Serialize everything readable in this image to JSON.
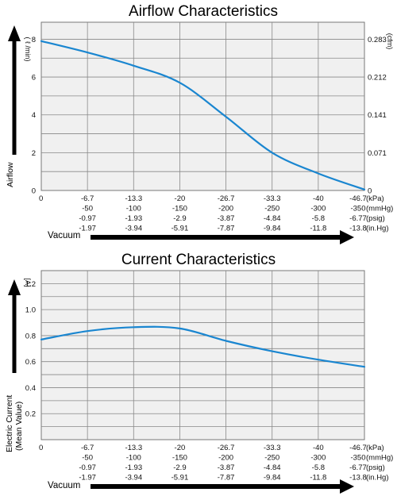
{
  "chart_data": [
    {
      "type": "line",
      "title": "Airflow Characteristics",
      "ylabel": "Airflow",
      "y_unit": "( ℓ /min)",
      "y2_unit": "(cfm)",
      "xlabel": "Vacuum",
      "ylim": [
        0,
        8.9
      ],
      "yticks": [
        0,
        2,
        4,
        6,
        8
      ],
      "y2ticks": [
        "0",
        "0.071",
        "0.141",
        "0.212",
        "0.283"
      ],
      "x_rows": [
        {
          "unit": "(kPa)",
          "labels": [
            "0",
            "-6.7",
            "-13.3",
            "-20",
            "-26.7",
            "-33.3",
            "-40",
            "-46.7"
          ]
        },
        {
          "unit": "(mmHg)",
          "labels": [
            "",
            "-50",
            "-100",
            "-150",
            "-200",
            "-250",
            "-300",
            "-350"
          ]
        },
        {
          "unit": "(psig)",
          "labels": [
            "",
            "-0.97",
            "-1.93",
            "-2.9",
            "-3.87",
            "-4.84",
            "-5.8",
            "-6.77"
          ]
        },
        {
          "unit": "(in.Hg)",
          "labels": [
            "",
            "-1.97",
            "-3.94",
            "-5.91",
            "-7.87",
            "-9.84",
            "-11.8",
            "-13.8"
          ]
        }
      ],
      "x": [
        0,
        -6.7,
        -13.3,
        -20,
        -26.7,
        -33.3,
        -40,
        -46.7
      ],
      "series": [
        {
          "values": [
            7.9,
            7.3,
            6.6,
            5.7,
            3.9,
            2.0,
            0.9,
            0.05
          ]
        }
      ]
    },
    {
      "type": "line",
      "title": "Current Characteristics",
      "ylabel": "Electric Current",
      "ylabel2": "(Mean Value)",
      "y_unit": "[A]",
      "xlabel": "Vacuum",
      "ylim": [
        0,
        1.3
      ],
      "yticks": [
        0.2,
        0.4,
        0.6,
        0.8,
        1.0,
        1.2
      ],
      "ytick_labels": [
        "0.2",
        "0.4",
        "0.6",
        "0.8",
        "1.0",
        "1.2"
      ],
      "x_rows": [
        {
          "unit": "(kPa)",
          "labels": [
            "0",
            "-6.7",
            "-13.3",
            "-20",
            "-26.7",
            "-33.3",
            "-40",
            "-46.7"
          ]
        },
        {
          "unit": "(mmHg)",
          "labels": [
            "",
            "-50",
            "-100",
            "-150",
            "-200",
            "-250",
            "-300",
            "-350"
          ]
        },
        {
          "unit": "(psig)",
          "labels": [
            "",
            "-0.97",
            "-1.93",
            "-2.9",
            "-3.87",
            "-4.84",
            "-5.8",
            "-6.77"
          ]
        },
        {
          "unit": "(in.Hg)",
          "labels": [
            "",
            "-1.97",
            "-3.94",
            "-5.91",
            "-7.87",
            "-9.84",
            "-11.8",
            "-13.8"
          ]
        }
      ],
      "x": [
        0,
        -6.7,
        -13.3,
        -20,
        -26.7,
        -33.3,
        -40,
        -46.7
      ],
      "series": [
        {
          "values": [
            0.77,
            0.835,
            0.865,
            0.855,
            0.76,
            0.68,
            0.615,
            0.56
          ]
        }
      ]
    }
  ]
}
